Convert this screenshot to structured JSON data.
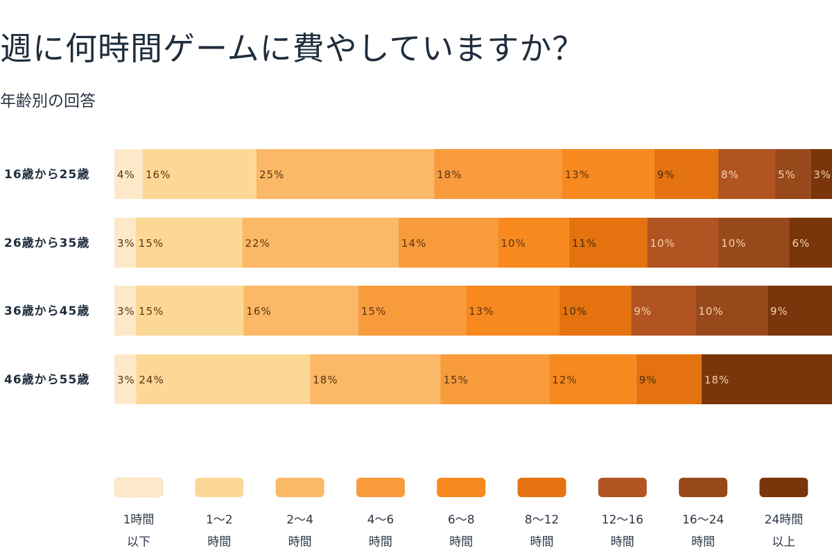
{
  "title": "週に何時間ゲームに費やしていますか？",
  "subtitle": "年齢別の回答",
  "chart_data": {
    "type": "bar",
    "orientation": "horizontal",
    "stacked": true,
    "title": "週に何時間ゲームに費やしていますか？",
    "subtitle": "年齢別の回答",
    "categories": [
      "16歳から25歳",
      "26歳から35歳",
      "36歳から45歳",
      "46歳から55歳"
    ],
    "series": [
      {
        "name": "1時間以下",
        "legend_lines": [
          "1時間",
          "以下"
        ],
        "color": "#fde9c9",
        "text_color": "#5a3410",
        "values": [
          4,
          3,
          3,
          3
        ]
      },
      {
        "name": "1〜2時間",
        "legend_lines": [
          "1〜2",
          "時間"
        ],
        "color": "#fcd896",
        "text_color": "#5a3410",
        "values": [
          16,
          15,
          15,
          24
        ]
      },
      {
        "name": "2〜4時間",
        "legend_lines": [
          "2〜4",
          "時間"
        ],
        "color": "#fbb866",
        "text_color": "#5a3410",
        "values": [
          25,
          22,
          16,
          18
        ]
      },
      {
        "name": "4〜6時間",
        "legend_lines": [
          "4〜6",
          "時間"
        ],
        "color": "#f89b3d",
        "text_color": "#5a3410",
        "values": [
          18,
          14,
          15,
          15
        ]
      },
      {
        "name": "6〜8時間",
        "legend_lines": [
          "6〜8",
          "時間"
        ],
        "color": "#f7891f",
        "text_color": "#5a3410",
        "values": [
          13,
          10,
          13,
          12
        ]
      },
      {
        "name": "8〜12時間",
        "legend_lines": [
          "8〜12",
          "時間"
        ],
        "color": "#e4730f",
        "text_color": "#4a2a0c",
        "values": [
          9,
          11,
          10,
          9
        ]
      },
      {
        "name": "12〜16時間",
        "legend_lines": [
          "12〜16",
          "時間"
        ],
        "color": "#b15422",
        "text_color": "#f6d3a8",
        "values": [
          8,
          10,
          9,
          0
        ]
      },
      {
        "name": "16〜24時間",
        "legend_lines": [
          "16〜24",
          "時間"
        ],
        "color": "#97491c",
        "text_color": "#f6d3a8",
        "values": [
          5,
          10,
          10,
          0
        ]
      },
      {
        "name": "24時間以上",
        "legend_lines": [
          "24時間",
          "以上"
        ],
        "color": "#7a350b",
        "text_color": "#f6d3a8",
        "values": [
          3,
          6,
          9,
          18
        ]
      }
    ],
    "data_labels": [
      [
        "4%",
        "16%",
        "25%",
        "18%",
        "13%",
        "9%",
        "8%",
        "5%",
        "3%"
      ],
      [
        "3%",
        "15%",
        "22%",
        "14%",
        "10%",
        "11%",
        "10%",
        "10%",
        "6%"
      ],
      [
        "3%",
        "15%",
        "16%",
        "15%",
        "13%",
        "10%",
        "9%",
        "10%",
        "9%"
      ],
      [
        "3%",
        "24%",
        "18%",
        "15%",
        "12%",
        "9%",
        "",
        "",
        "18%"
      ]
    ],
    "legend_position": "bottom",
    "grid": false
  }
}
